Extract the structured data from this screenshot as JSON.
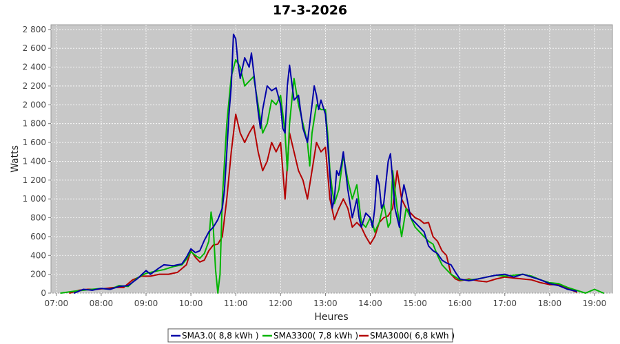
{
  "chart_data": {
    "type": "line",
    "title": "17-3-2026",
    "xlabel": "Heures",
    "ylabel": "Watts",
    "xlim": [
      6.88,
      19.4
    ],
    "ylim": [
      0,
      2850
    ],
    "x_ticks": [
      7,
      8,
      9,
      10,
      11,
      12,
      13,
      14,
      15,
      16,
      17,
      18,
      19
    ],
    "x_tick_labels": [
      "07:00",
      "08:00",
      "09:00",
      "10:00",
      "11:00",
      "12:00",
      "13:00",
      "14:00",
      "15:00",
      "16:00",
      "17:00",
      "18:00",
      "19:00"
    ],
    "y_ticks": [
      0,
      200,
      400,
      600,
      800,
      1000,
      1200,
      1400,
      1600,
      1800,
      2000,
      2200,
      2400,
      2600,
      2800
    ],
    "y_tick_labels": [
      "0",
      "200",
      "400",
      "600",
      "800",
      "1 000",
      "1 200",
      "1 400",
      "1 600",
      "1 800",
      "2 000",
      "2 200",
      "2 400",
      "2 600",
      "2 800"
    ],
    "grid": true,
    "legend_position": "bottom",
    "background": "#c8c8c8",
    "series": [
      {
        "name": "SMA3.0( 8,8 kWh )",
        "color": "#0000a8",
        "points": [
          [
            7.4,
            0
          ],
          [
            7.6,
            40
          ],
          [
            7.8,
            30
          ],
          [
            8.0,
            50
          ],
          [
            8.2,
            40
          ],
          [
            8.4,
            70
          ],
          [
            8.6,
            80
          ],
          [
            8.8,
            150
          ],
          [
            9.0,
            240
          ],
          [
            9.1,
            200
          ],
          [
            9.3,
            270
          ],
          [
            9.4,
            300
          ],
          [
            9.6,
            290
          ],
          [
            9.8,
            310
          ],
          [
            9.9,
            380
          ],
          [
            10.0,
            470
          ],
          [
            10.1,
            430
          ],
          [
            10.2,
            450
          ],
          [
            10.3,
            560
          ],
          [
            10.4,
            650
          ],
          [
            10.5,
            700
          ],
          [
            10.6,
            780
          ],
          [
            10.7,
            900
          ],
          [
            10.75,
            1100
          ],
          [
            10.8,
            1500
          ],
          [
            10.85,
            1900
          ],
          [
            10.9,
            2200
          ],
          [
            10.95,
            2750
          ],
          [
            11.0,
            2700
          ],
          [
            11.05,
            2450
          ],
          [
            11.1,
            2280
          ],
          [
            11.2,
            2500
          ],
          [
            11.3,
            2400
          ],
          [
            11.35,
            2550
          ],
          [
            11.4,
            2350
          ],
          [
            11.5,
            1930
          ],
          [
            11.55,
            1750
          ],
          [
            11.6,
            1950
          ],
          [
            11.7,
            2200
          ],
          [
            11.8,
            2150
          ],
          [
            11.9,
            2180
          ],
          [
            12.0,
            2000
          ],
          [
            12.05,
            1750
          ],
          [
            12.1,
            1700
          ],
          [
            12.15,
            2200
          ],
          [
            12.2,
            2420
          ],
          [
            12.3,
            2050
          ],
          [
            12.4,
            2100
          ],
          [
            12.5,
            1750
          ],
          [
            12.6,
            1600
          ],
          [
            12.7,
            2000
          ],
          [
            12.75,
            2200
          ],
          [
            12.8,
            2100
          ],
          [
            12.85,
            1950
          ],
          [
            12.9,
            2050
          ],
          [
            13.0,
            1900
          ],
          [
            13.05,
            1600
          ],
          [
            13.1,
            1250
          ],
          [
            13.15,
            900
          ],
          [
            13.2,
            1000
          ],
          [
            13.25,
            1300
          ],
          [
            13.3,
            1250
          ],
          [
            13.35,
            1350
          ],
          [
            13.4,
            1500
          ],
          [
            13.5,
            1100
          ],
          [
            13.6,
            800
          ],
          [
            13.7,
            1000
          ],
          [
            13.75,
            800
          ],
          [
            13.8,
            700
          ],
          [
            13.9,
            850
          ],
          [
            14.0,
            800
          ],
          [
            14.05,
            700
          ],
          [
            14.1,
            900
          ],
          [
            14.15,
            1250
          ],
          [
            14.2,
            1150
          ],
          [
            14.25,
            900
          ],
          [
            14.3,
            950
          ],
          [
            14.4,
            1400
          ],
          [
            14.45,
            1480
          ],
          [
            14.5,
            1200
          ],
          [
            14.55,
            900
          ],
          [
            14.6,
            800
          ],
          [
            14.65,
            700
          ],
          [
            14.7,
            1000
          ],
          [
            14.75,
            1150
          ],
          [
            14.8,
            1050
          ],
          [
            14.9,
            800
          ],
          [
            15.0,
            750
          ],
          [
            15.1,
            700
          ],
          [
            15.2,
            650
          ],
          [
            15.3,
            500
          ],
          [
            15.4,
            450
          ],
          [
            15.5,
            420
          ],
          [
            15.6,
            350
          ],
          [
            15.7,
            320
          ],
          [
            15.8,
            300
          ],
          [
            15.9,
            220
          ],
          [
            16.0,
            150
          ],
          [
            16.2,
            130
          ],
          [
            16.4,
            150
          ],
          [
            16.6,
            170
          ],
          [
            16.8,
            190
          ],
          [
            17.0,
            200
          ],
          [
            17.2,
            170
          ],
          [
            17.4,
            200
          ],
          [
            17.6,
            170
          ],
          [
            17.8,
            140
          ],
          [
            18.0,
            100
          ],
          [
            18.2,
            80
          ],
          [
            18.4,
            40
          ],
          [
            18.6,
            20
          ]
        ]
      },
      {
        "name": "SMA3300( 7,8 kWh )",
        "color": "#00b400",
        "points": [
          [
            7.1,
            0
          ],
          [
            7.4,
            20
          ],
          [
            7.6,
            30
          ],
          [
            7.8,
            40
          ],
          [
            8.0,
            50
          ],
          [
            8.2,
            40
          ],
          [
            8.4,
            80
          ],
          [
            8.6,
            70
          ],
          [
            8.8,
            160
          ],
          [
            9.0,
            210
          ],
          [
            9.2,
            230
          ],
          [
            9.4,
            250
          ],
          [
            9.6,
            280
          ],
          [
            9.8,
            300
          ],
          [
            9.9,
            360
          ],
          [
            10.0,
            440
          ],
          [
            10.1,
            400
          ],
          [
            10.2,
            370
          ],
          [
            10.3,
            420
          ],
          [
            10.4,
            550
          ],
          [
            10.45,
            860
          ],
          [
            10.5,
            700
          ],
          [
            10.55,
            250
          ],
          [
            10.6,
            0
          ],
          [
            10.65,
            200
          ],
          [
            10.7,
            1000
          ],
          [
            10.8,
            1800
          ],
          [
            10.9,
            2300
          ],
          [
            11.0,
            2480
          ],
          [
            11.1,
            2400
          ],
          [
            11.2,
            2200
          ],
          [
            11.3,
            2250
          ],
          [
            11.4,
            2300
          ],
          [
            11.5,
            2000
          ],
          [
            11.6,
            1700
          ],
          [
            11.7,
            1800
          ],
          [
            11.8,
            2050
          ],
          [
            11.9,
            2000
          ],
          [
            12.0,
            2100
          ],
          [
            12.1,
            1700
          ],
          [
            12.15,
            1300
          ],
          [
            12.2,
            1800
          ],
          [
            12.3,
            2280
          ],
          [
            12.4,
            2000
          ],
          [
            12.5,
            1800
          ],
          [
            12.6,
            1600
          ],
          [
            12.65,
            1350
          ],
          [
            12.7,
            1700
          ],
          [
            12.8,
            2000
          ],
          [
            12.9,
            1950
          ],
          [
            13.0,
            1950
          ],
          [
            13.05,
            1700
          ],
          [
            13.1,
            1300
          ],
          [
            13.15,
            1100
          ],
          [
            13.2,
            950
          ],
          [
            13.3,
            1100
          ],
          [
            13.4,
            1460
          ],
          [
            13.5,
            1200
          ],
          [
            13.6,
            1000
          ],
          [
            13.7,
            1150
          ],
          [
            13.8,
            750
          ],
          [
            13.9,
            700
          ],
          [
            14.0,
            800
          ],
          [
            14.05,
            750
          ],
          [
            14.1,
            650
          ],
          [
            14.2,
            750
          ],
          [
            14.3,
            950
          ],
          [
            14.4,
            700
          ],
          [
            14.45,
            750
          ],
          [
            14.5,
            1300
          ],
          [
            14.6,
            900
          ],
          [
            14.7,
            600
          ],
          [
            14.8,
            900
          ],
          [
            14.9,
            800
          ],
          [
            15.0,
            700
          ],
          [
            15.1,
            650
          ],
          [
            15.2,
            600
          ],
          [
            15.3,
            550
          ],
          [
            15.4,
            520
          ],
          [
            15.5,
            400
          ],
          [
            15.6,
            300
          ],
          [
            15.7,
            250
          ],
          [
            15.8,
            200
          ],
          [
            16.0,
            140
          ],
          [
            16.2,
            140
          ],
          [
            16.4,
            150
          ],
          [
            16.6,
            170
          ],
          [
            16.8,
            190
          ],
          [
            17.0,
            180
          ],
          [
            17.2,
            190
          ],
          [
            17.4,
            200
          ],
          [
            17.6,
            180
          ],
          [
            17.8,
            140
          ],
          [
            18.0,
            110
          ],
          [
            18.2,
            100
          ],
          [
            18.4,
            60
          ],
          [
            18.6,
            30
          ],
          [
            18.8,
            0
          ],
          [
            19.0,
            40
          ],
          [
            19.2,
            0
          ]
        ]
      },
      {
        "name": "SMA3000( 6,8 kWh )",
        "color": "#b40000",
        "points": [
          [
            7.3,
            0
          ],
          [
            7.5,
            30
          ],
          [
            7.7,
            40
          ],
          [
            7.9,
            40
          ],
          [
            8.1,
            50
          ],
          [
            8.3,
            60
          ],
          [
            8.5,
            60
          ],
          [
            8.7,
            140
          ],
          [
            8.9,
            180
          ],
          [
            9.1,
            180
          ],
          [
            9.3,
            200
          ],
          [
            9.5,
            200
          ],
          [
            9.7,
            220
          ],
          [
            9.9,
            300
          ],
          [
            10.0,
            450
          ],
          [
            10.1,
            380
          ],
          [
            10.2,
            330
          ],
          [
            10.3,
            350
          ],
          [
            10.4,
            450
          ],
          [
            10.5,
            510
          ],
          [
            10.6,
            520
          ],
          [
            10.7,
            600
          ],
          [
            10.8,
            1000
          ],
          [
            10.9,
            1500
          ],
          [
            11.0,
            1900
          ],
          [
            11.1,
            1700
          ],
          [
            11.2,
            1600
          ],
          [
            11.3,
            1700
          ],
          [
            11.4,
            1780
          ],
          [
            11.5,
            1500
          ],
          [
            11.6,
            1300
          ],
          [
            11.7,
            1400
          ],
          [
            11.8,
            1600
          ],
          [
            11.9,
            1500
          ],
          [
            12.0,
            1600
          ],
          [
            12.1,
            1000
          ],
          [
            12.2,
            1700
          ],
          [
            12.3,
            1500
          ],
          [
            12.4,
            1300
          ],
          [
            12.5,
            1200
          ],
          [
            12.6,
            1000
          ],
          [
            12.7,
            1300
          ],
          [
            12.8,
            1600
          ],
          [
            12.9,
            1500
          ],
          [
            13.0,
            1550
          ],
          [
            13.1,
            1000
          ],
          [
            13.2,
            780
          ],
          [
            13.3,
            900
          ],
          [
            13.4,
            1000
          ],
          [
            13.5,
            900
          ],
          [
            13.6,
            700
          ],
          [
            13.7,
            750
          ],
          [
            13.8,
            700
          ],
          [
            13.9,
            600
          ],
          [
            14.0,
            520
          ],
          [
            14.1,
            600
          ],
          [
            14.2,
            750
          ],
          [
            14.3,
            800
          ],
          [
            14.4,
            820
          ],
          [
            14.5,
            900
          ],
          [
            14.6,
            1300
          ],
          [
            14.7,
            1000
          ],
          [
            14.8,
            900
          ],
          [
            14.9,
            850
          ],
          [
            15.0,
            800
          ],
          [
            15.1,
            780
          ],
          [
            15.2,
            740
          ],
          [
            15.3,
            750
          ],
          [
            15.4,
            600
          ],
          [
            15.5,
            550
          ],
          [
            15.6,
            450
          ],
          [
            15.7,
            400
          ],
          [
            15.8,
            200
          ],
          [
            15.9,
            150
          ],
          [
            16.0,
            130
          ],
          [
            16.2,
            150
          ],
          [
            16.4,
            130
          ],
          [
            16.6,
            120
          ],
          [
            16.8,
            150
          ],
          [
            17.0,
            170
          ],
          [
            17.2,
            160
          ],
          [
            17.4,
            150
          ],
          [
            17.6,
            140
          ],
          [
            17.8,
            110
          ],
          [
            18.0,
            90
          ],
          [
            18.2,
            90
          ],
          [
            18.4,
            50
          ],
          [
            18.6,
            10
          ]
        ]
      }
    ]
  }
}
